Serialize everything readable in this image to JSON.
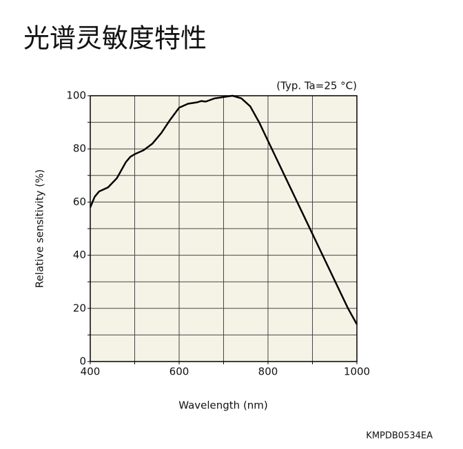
{
  "chart_data": {
    "type": "line",
    "title": "光谱灵敏度特性",
    "annotation": "(Typ. Ta=25 °C)",
    "x_label": "Wavelength (nm)",
    "y_label": "Relative sensitivity (%)",
    "footer": "KMPDB0534EA",
    "x": [
      400,
      410,
      420,
      440,
      460,
      480,
      490,
      500,
      520,
      540,
      560,
      580,
      600,
      620,
      640,
      650,
      660,
      680,
      700,
      720,
      740,
      760,
      780,
      800,
      820,
      840,
      860,
      880,
      900,
      920,
      940,
      960,
      980,
      1000
    ],
    "series": [
      {
        "color": "#000000",
        "values": [
          58,
          62,
          64,
          65.5,
          69,
          75,
          77,
          78,
          79.5,
          82,
          86,
          91,
          95.5,
          97,
          97.5,
          98,
          97.8,
          99,
          99.5,
          100,
          99,
          96,
          90,
          83,
          76,
          69,
          62,
          55,
          48,
          41,
          34,
          27,
          20,
          14
        ]
      }
    ],
    "xlim": [
      400,
      1000
    ],
    "ylim": [
      0,
      100
    ],
    "xticks": [
      400,
      600,
      800,
      1000
    ],
    "yticks": [
      0,
      20,
      40,
      60,
      80,
      100
    ],
    "x_gridlines": [
      400,
      500,
      600,
      700,
      800,
      900,
      1000
    ],
    "y_gridlines": [
      0,
      10,
      20,
      30,
      40,
      50,
      60,
      70,
      80,
      90,
      100
    ],
    "background": "#f5f3e6"
  }
}
